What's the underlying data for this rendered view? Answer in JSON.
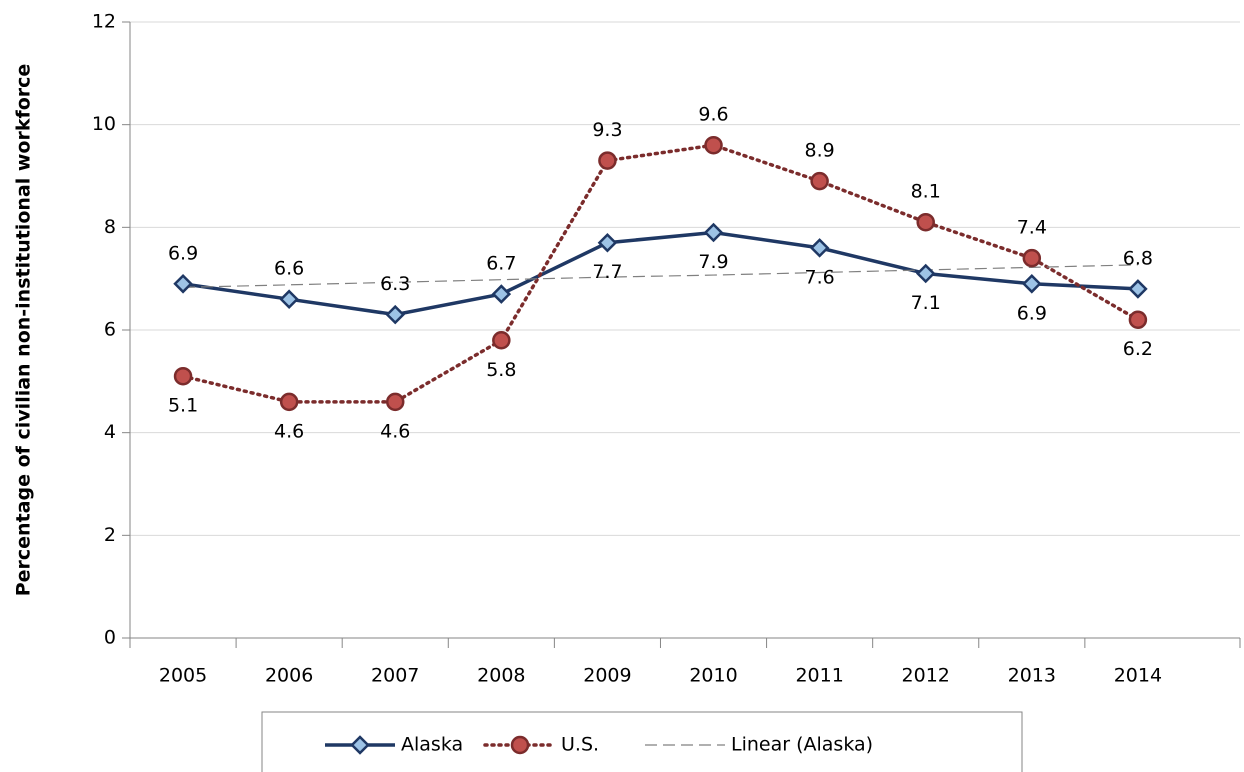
{
  "chart_data": {
    "type": "line",
    "y_axis_label": "Percentage of civilian non-institutional workforce",
    "categories": [
      "2005",
      "2006",
      "2007",
      "2008",
      "2009",
      "2010",
      "2011",
      "2012",
      "2013",
      "2014"
    ],
    "series": [
      {
        "name": "Alaska",
        "color": "#1f3864",
        "marker": "diamond",
        "marker_fill": "#9dc3e6",
        "line_style": "solid",
        "data_labels": true,
        "values": [
          6.9,
          6.6,
          6.3,
          6.7,
          7.7,
          7.9,
          7.6,
          7.1,
          6.9,
          6.8
        ]
      },
      {
        "name": "U.S.",
        "color": "#7b2c2c",
        "marker": "circle",
        "marker_fill": "#c0504d",
        "line_style": "dotted",
        "data_labels": true,
        "values": [
          5.1,
          4.6,
          4.6,
          5.8,
          9.3,
          9.6,
          8.9,
          8.1,
          7.4,
          6.2
        ]
      },
      {
        "name": "Linear (Alaska)",
        "color": "#808080",
        "marker": "none",
        "line_style": "dashed",
        "data_labels": false,
        "values": [
          6.83,
          6.88,
          6.93,
          6.98,
          7.03,
          7.07,
          7.12,
          7.17,
          7.22,
          7.27
        ]
      }
    ],
    "ylim": [
      0,
      12
    ],
    "yticks": [
      0,
      2,
      4,
      6,
      8,
      10,
      12
    ],
    "grid": true,
    "legend": "bottom"
  }
}
